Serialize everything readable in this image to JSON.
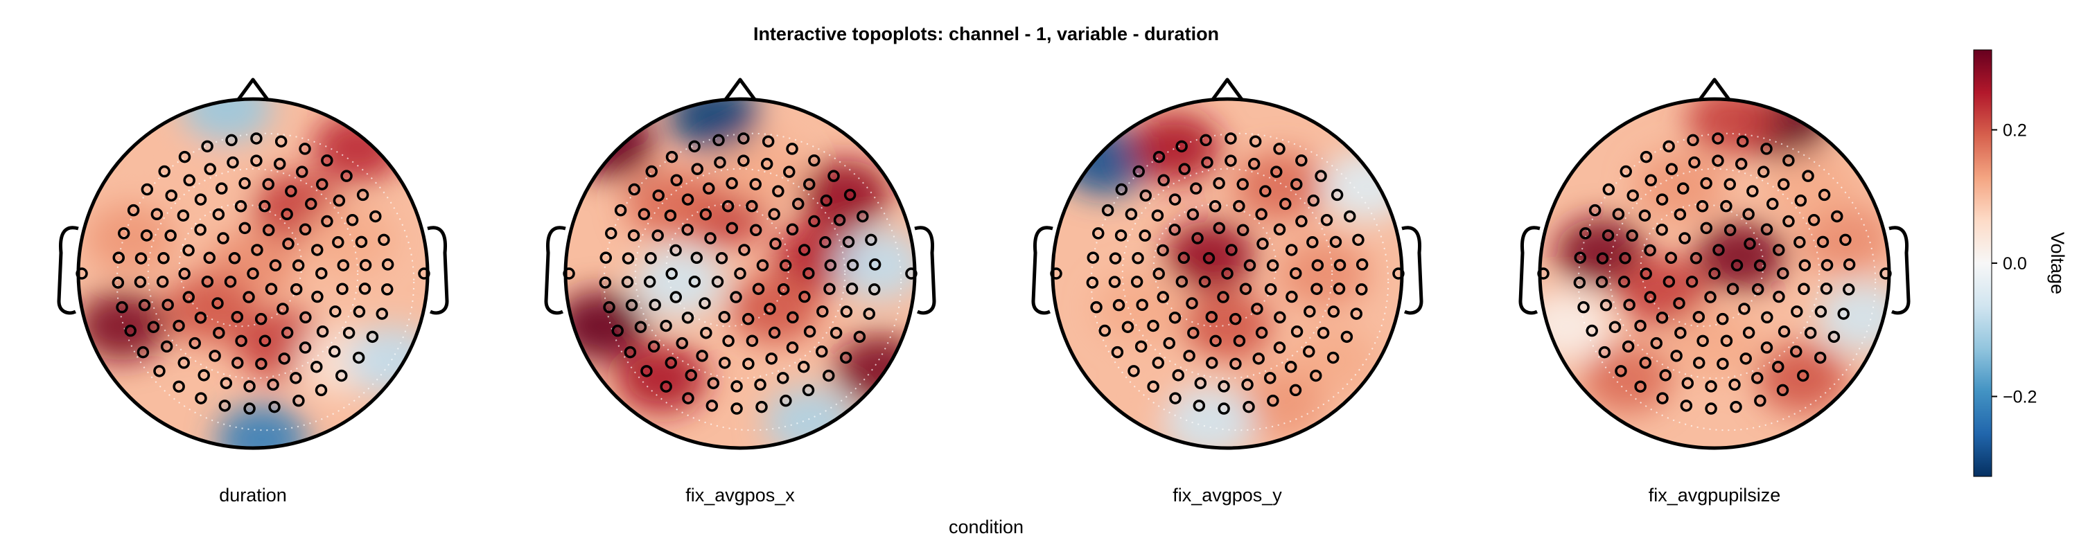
{
  "chart_data": {
    "type": "topoplot",
    "title": "Interactive topoplots: channel - 1, variable - duration",
    "xlabel": "condition",
    "colorbar": {
      "label": "Voltage",
      "limits": [
        -0.32,
        0.32
      ],
      "ticks": [
        {
          "value": 0.2,
          "label": "0.2"
        },
        {
          "value": 0.0,
          "label": "0.0"
        },
        {
          "value": -0.2,
          "label": "−0.2"
        }
      ],
      "colormap": [
        "#053061",
        "#2166ac",
        "#4393c3",
        "#92c5de",
        "#d1e5f0",
        "#f7f7f7",
        "#fddbc7",
        "#f4a582",
        "#d6604d",
        "#b2182b",
        "#67001f"
      ]
    },
    "electrodes": "128-channel layout, shown as open circles",
    "topoplots": [
      {
        "condition": "duration",
        "blobs": [
          {
            "x": -0.7,
            "y": 0.2,
            "v": 0.14
          },
          {
            "x": -0.75,
            "y": -0.3,
            "v": 0.3
          },
          {
            "x": 0.6,
            "y": 0.72,
            "v": 0.24
          },
          {
            "x": 0.25,
            "y": 0.38,
            "v": 0.22
          },
          {
            "x": 0.0,
            "y": 0.05,
            "v": 0.15
          },
          {
            "x": 0.15,
            "y": -0.4,
            "v": 0.22
          },
          {
            "x": -0.25,
            "y": -0.2,
            "v": 0.2
          },
          {
            "x": -0.3,
            "y": 0.5,
            "v": 0.1
          },
          {
            "x": 0.55,
            "y": 0.2,
            "v": 0.12
          },
          {
            "x": 0.5,
            "y": -0.5,
            "v": 0.05
          },
          {
            "x": -0.15,
            "y": 0.95,
            "v": -0.12
          },
          {
            "x": 0.05,
            "y": -0.95,
            "v": -0.22
          },
          {
            "x": 0.8,
            "y": -0.5,
            "v": -0.08
          }
        ]
      },
      {
        "condition": "fix_avgpos_x",
        "blobs": [
          {
            "x": -0.75,
            "y": 0.75,
            "v": 0.32
          },
          {
            "x": -0.8,
            "y": -0.3,
            "v": 0.32
          },
          {
            "x": -0.45,
            "y": -0.6,
            "v": 0.26
          },
          {
            "x": 0.8,
            "y": -0.55,
            "v": 0.3
          },
          {
            "x": 0.6,
            "y": 0.45,
            "v": 0.28
          },
          {
            "x": 0.45,
            "y": 0.1,
            "v": 0.25
          },
          {
            "x": -0.1,
            "y": 0.35,
            "v": 0.22
          },
          {
            "x": 0.2,
            "y": -0.2,
            "v": 0.2
          },
          {
            "x": -0.4,
            "y": 0.4,
            "v": 0.18
          },
          {
            "x": 0.1,
            "y": 0.6,
            "v": 0.12
          },
          {
            "x": -0.15,
            "y": 0.9,
            "v": -0.3
          },
          {
            "x": 0.8,
            "y": 0.05,
            "v": -0.08
          },
          {
            "x": -0.35,
            "y": -0.05,
            "v": -0.06
          },
          {
            "x": 0.4,
            "y": -0.85,
            "v": -0.1
          }
        ]
      },
      {
        "condition": "fix_avgpos_y",
        "blobs": [
          {
            "x": -0.7,
            "y": 0.65,
            "v": -0.28
          },
          {
            "x": -0.3,
            "y": 0.72,
            "v": 0.26
          },
          {
            "x": -0.1,
            "y": 0.1,
            "v": 0.28
          },
          {
            "x": 0.3,
            "y": 0.5,
            "v": 0.18
          },
          {
            "x": 0.0,
            "y": -0.3,
            "v": 0.2
          },
          {
            "x": 0.55,
            "y": 0.0,
            "v": 0.15
          },
          {
            "x": 0.6,
            "y": -0.5,
            "v": 0.12
          },
          {
            "x": -0.5,
            "y": -0.2,
            "v": 0.12
          },
          {
            "x": 0.3,
            "y": -0.75,
            "v": 0.14
          },
          {
            "x": -0.3,
            "y": -0.7,
            "v": 0.1
          },
          {
            "x": -0.1,
            "y": -0.85,
            "v": -0.06
          },
          {
            "x": 0.8,
            "y": 0.5,
            "v": -0.04
          }
        ]
      },
      {
        "condition": "fix_avgpupilsize",
        "blobs": [
          {
            "x": 0.4,
            "y": 0.85,
            "v": 0.34
          },
          {
            "x": 0.1,
            "y": 0.88,
            "v": 0.22
          },
          {
            "x": -0.65,
            "y": 0.12,
            "v": 0.3
          },
          {
            "x": 0.15,
            "y": 0.1,
            "v": 0.3
          },
          {
            "x": -0.3,
            "y": -0.1,
            "v": 0.22
          },
          {
            "x": -0.5,
            "y": -0.6,
            "v": 0.18
          },
          {
            "x": 0.5,
            "y": -0.6,
            "v": 0.2
          },
          {
            "x": 0.75,
            "y": 0.2,
            "v": 0.15
          },
          {
            "x": 0.0,
            "y": -0.4,
            "v": 0.12
          },
          {
            "x": -0.2,
            "y": 0.5,
            "v": 0.14
          },
          {
            "x": 0.55,
            "y": 0.5,
            "v": 0.12
          },
          {
            "x": 0.85,
            "y": -0.25,
            "v": -0.06
          },
          {
            "x": -0.85,
            "y": -0.3,
            "v": 0.02
          }
        ]
      }
    ]
  }
}
